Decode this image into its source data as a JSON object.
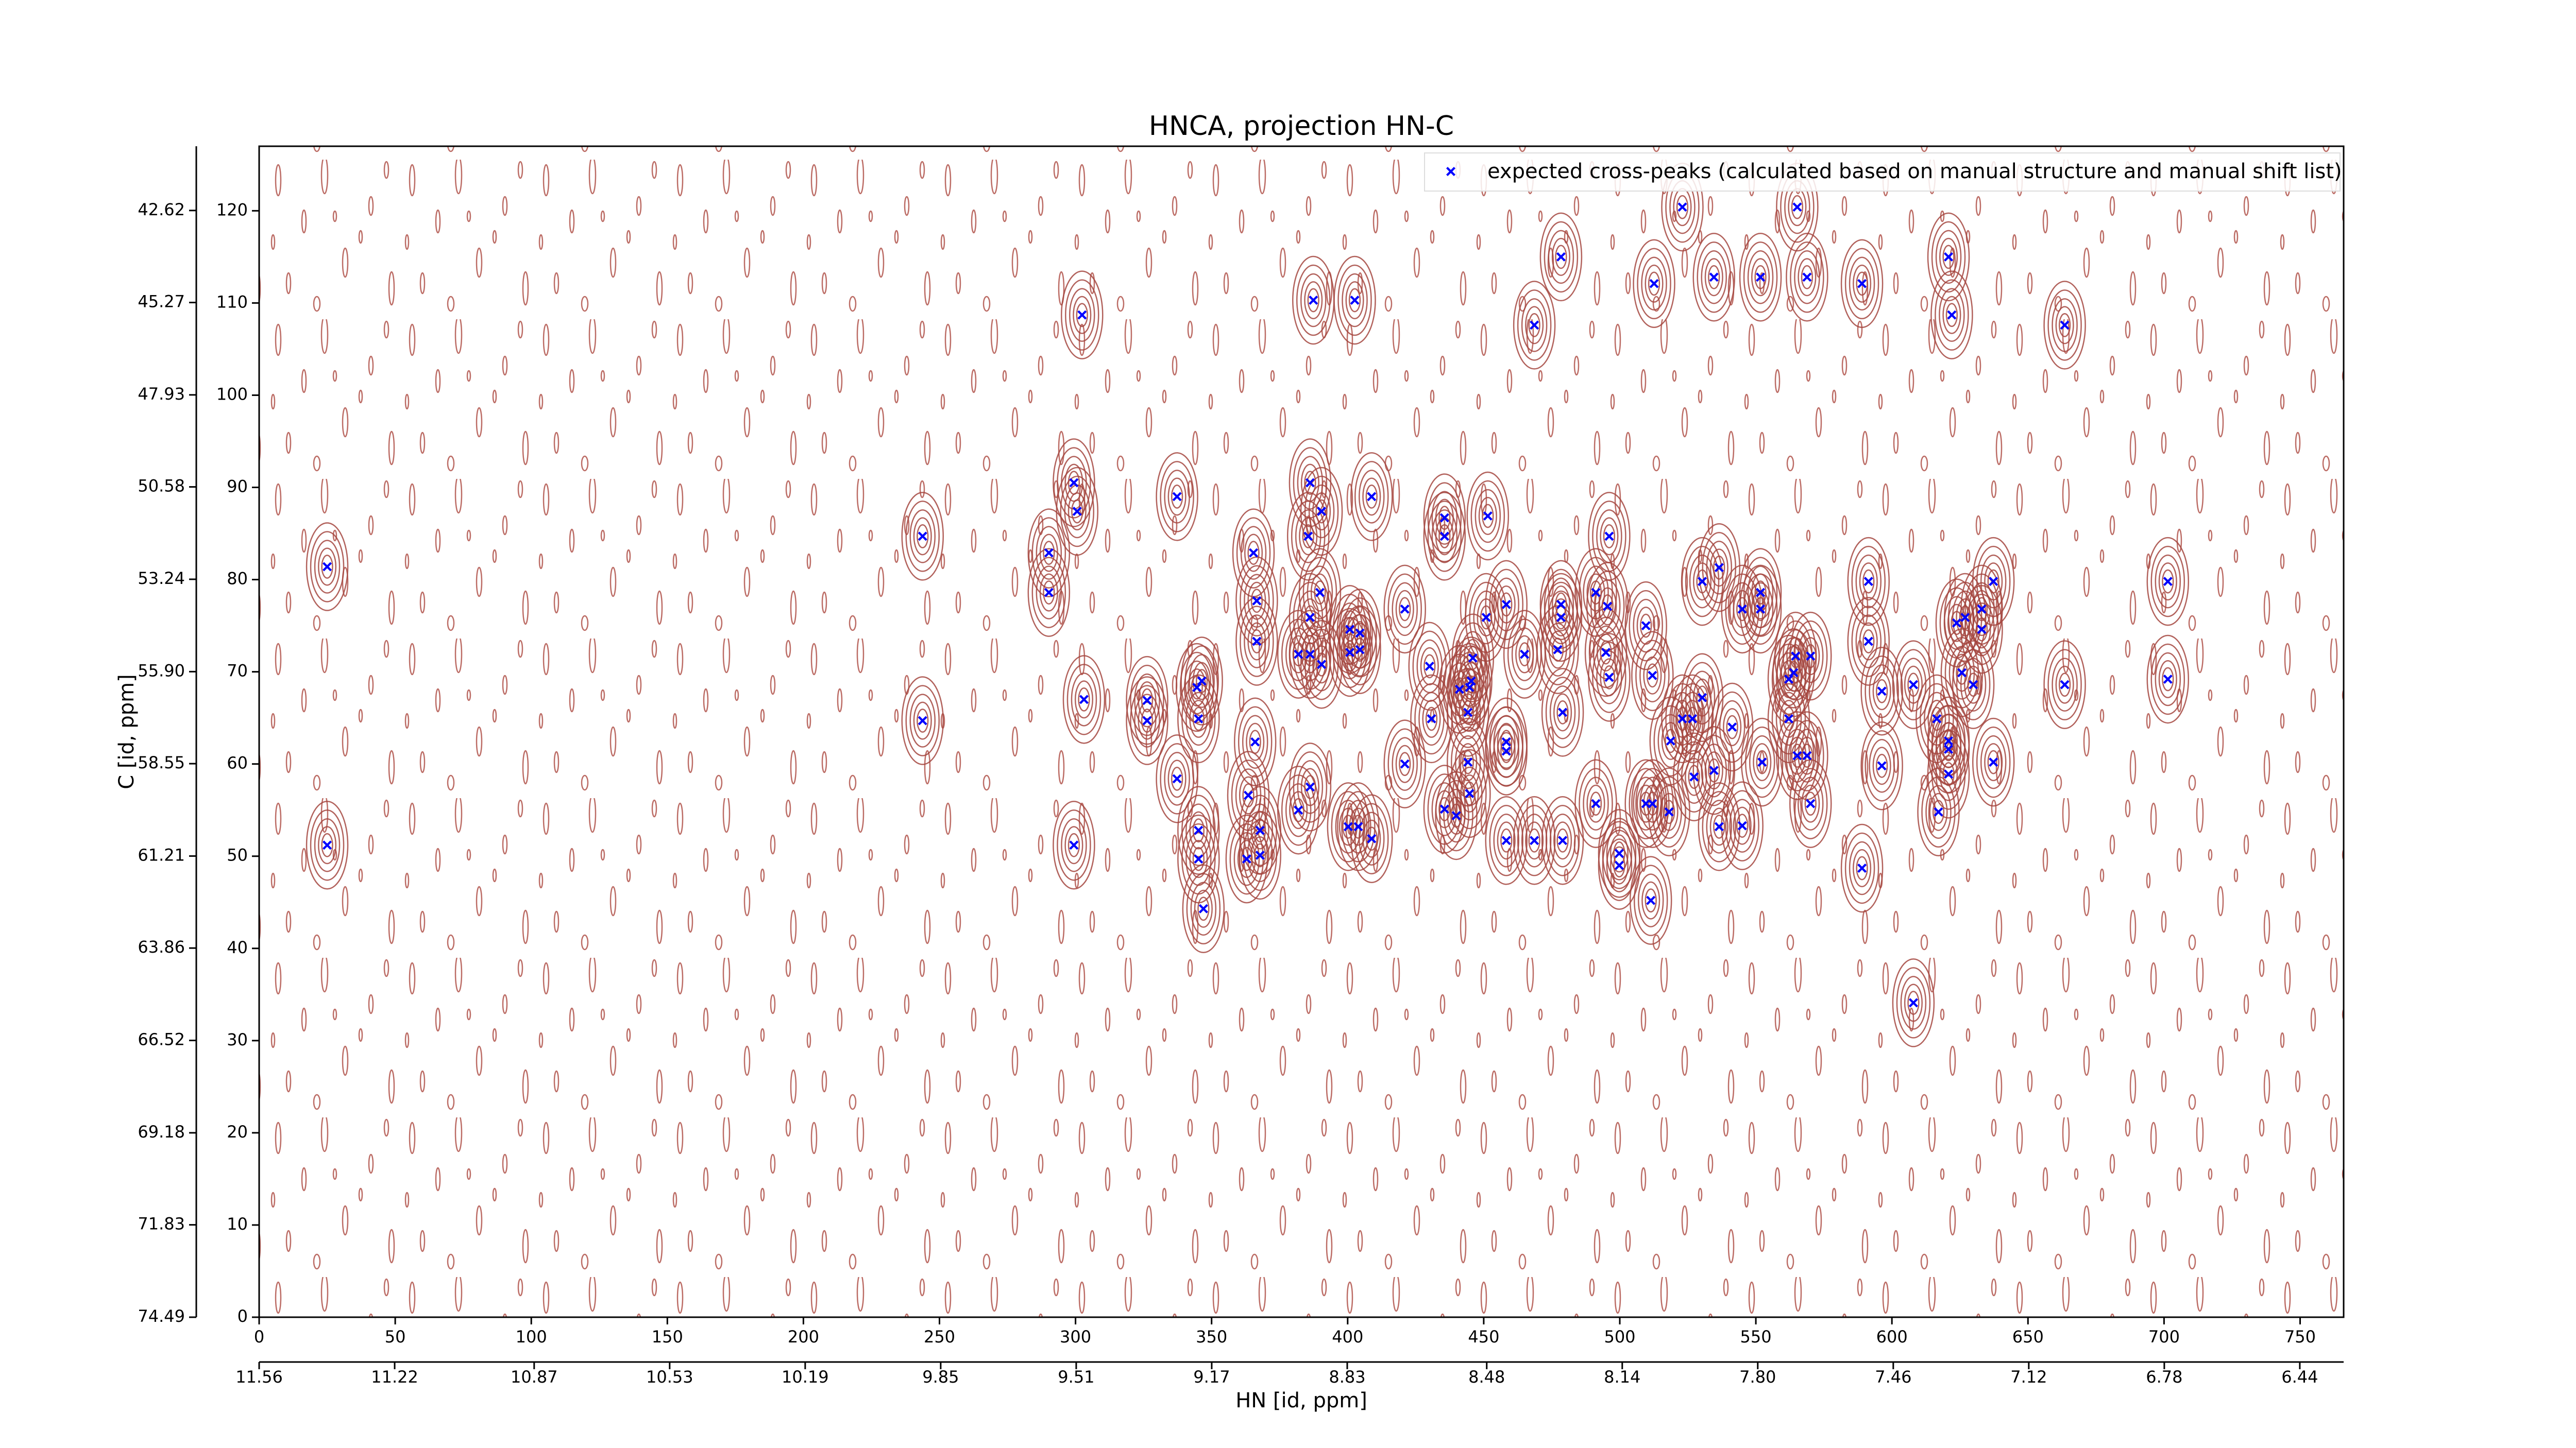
{
  "chart_data": {
    "type": "scatter",
    "title": "HNCA, projection HN-C",
    "xlabel": "HN [id, ppm]",
    "ylabel": "C [id, ppm]",
    "xlim": [
      0,
      766
    ],
    "ylim": [
      0,
      127
    ],
    "xticks": [
      0,
      50,
      100,
      150,
      200,
      250,
      300,
      350,
      400,
      450,
      500,
      550,
      600,
      650,
      700,
      750
    ],
    "yticks": [
      0,
      10,
      20,
      30,
      40,
      50,
      60,
      70,
      80,
      90,
      100,
      110,
      120
    ],
    "x2lim": [
      11.56,
      6.33
    ],
    "x2ticks": [
      11.56,
      11.22,
      10.87,
      10.53,
      10.19,
      9.85,
      9.51,
      9.17,
      8.83,
      8.48,
      8.14,
      {
        "value": 7.8,
        "label": "7.80"
      },
      7.46,
      7.12,
      6.78,
      6.44
    ],
    "y2lim": [
      74.49,
      40.77
    ],
    "y2ticks": [
      74.49,
      71.83,
      69.18,
      66.52,
      63.86,
      61.21,
      58.55,
      {
        "value": 55.9,
        "label": "55.90"
      },
      53.24,
      50.58,
      47.93,
      45.27,
      42.62
    ],
    "legend": "upper right",
    "contour_color": "#a5473f",
    "series": [
      {
        "name": "expected cross-peaks (calculated based on manual structure and manual shift list)",
        "color": "#0000ff",
        "x": [
          25.0,
          25.0,
          243.8,
          243.8,
          302.4,
          299.4,
          300.6,
          290.2,
          290.2,
          303.1,
          299.4,
          337.3,
          326.3,
          326.3,
          337.3,
          346.4,
          344.6,
          345.2,
          345.2,
          345.2,
          347.0,
          365.4,
          366.6,
          366.6,
          366.0,
          363.5,
          367.8,
          362.9,
          367.8,
          387.4,
          402.6,
          386.2,
          390.4,
          385.5,
          408.8,
          389.8,
          386.2,
          381.9,
          386.2,
          390.4,
          386.2,
          381.9,
          400.8,
          404.5,
          400.8,
          404.5,
          400.2,
          403.9,
          408.8,
          421.0,
          421.0,
          435.6,
          435.6,
          430.1,
          430.8,
          441.1,
          444.2,
          445.4,
          444.8,
          446.0,
          435.6,
          439.9,
          444.2,
          444.8,
          450.9,
          451.5,
          458.3,
          458.3,
          458.3,
          458.3,
          465.0,
          468.6,
          468.6,
          478.4,
          478.4,
          478.4,
          477.2,
          479.0,
          479.0,
          491.2,
          491.2,
          495.5,
          494.9,
          496.1,
          496.1,
          499.8,
          499.8,
          509.6,
          512.0,
          509.6,
          512.0,
          511.4,
          512.6,
          518.7,
          518.1,
          523.0,
          523.0,
          526.7,
          527.3,
          530.3,
          530.3,
          534.6,
          536.5,
          536.5,
          534.6,
          541.3,
          545.0,
          545.0,
          551.7,
          551.7,
          551.7,
          552.3,
          562.1,
          562.1,
          563.9,
          564.6,
          565.2,
          570.1,
          568.8,
          570.1,
          565.2,
          568.8,
          589.0,
          591.4,
          591.4,
          589.0,
          596.3,
          596.3,
          607.9,
          607.9,
          620.8,
          622.0,
          616.5,
          620.8,
          620.8,
          620.8,
          617.1,
          623.8,
          626.9,
          629.9,
          625.7,
          633.0,
          633.0,
          637.3,
          637.3,
          663.5,
          663.5,
          701.4,
          701.4
        ],
        "values": [
          81.4,
          51.2,
          84.7,
          64.7,
          108.7,
          90.5,
          87.4,
          82.9,
          78.6,
          67.0,
          51.2,
          89.0,
          66.9,
          64.7,
          58.4,
          69.0,
          68.3,
          64.9,
          52.8,
          49.7,
          44.3,
          82.9,
          77.7,
          73.3,
          62.4,
          56.6,
          52.8,
          49.7,
          50.1,
          110.3,
          110.3,
          90.5,
          87.4,
          84.7,
          89.0,
          78.6,
          75.9,
          71.9,
          71.9,
          70.8,
          57.5,
          55.0,
          74.6,
          74.2,
          72.1,
          72.4,
          53.2,
          53.2,
          51.9,
          76.8,
          60.0,
          86.7,
          84.7,
          70.6,
          64.9,
          68.1,
          65.6,
          69.0,
          68.3,
          71.5,
          55.1,
          54.4,
          60.2,
          56.8,
          75.9,
          86.9,
          77.3,
          62.4,
          61.4,
          51.7,
          71.9,
          51.7,
          107.6,
          115.0,
          77.3,
          75.9,
          72.4,
          65.6,
          51.7,
          78.6,
          55.7,
          77.1,
          72.1,
          69.4,
          84.7,
          50.3,
          49.0,
          75.0,
          69.6,
          55.7,
          55.7,
          45.2,
          112.1,
          62.5,
          54.8,
          120.4,
          64.9,
          64.9,
          58.6,
          79.8,
          67.2,
          59.3,
          81.3,
          53.2,
          112.8,
          64.0,
          53.3,
          76.8,
          112.8,
          78.6,
          76.8,
          60.2,
          64.9,
          69.2,
          69.9,
          71.7,
          60.9,
          71.7,
          60.9,
          55.7,
          120.4,
          112.8,
          112.1,
          79.8,
          73.3,
          48.7,
          67.9,
          59.8,
          68.6,
          34.1,
          115.0,
          108.7,
          64.9,
          62.5,
          61.6,
          58.9,
          54.8,
          75.3,
          75.9,
          68.6,
          69.9,
          76.8,
          74.6,
          79.8,
          60.2,
          107.6,
          68.6,
          79.8,
          69.2
        ]
      }
    ]
  }
}
